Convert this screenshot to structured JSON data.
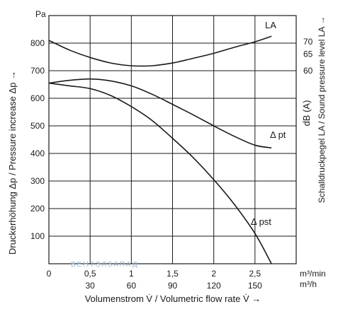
{
  "chart_data": {
    "type": "line",
    "x_unit_primary": "m³/min",
    "x_unit_secondary": "m³/h",
    "y_unit_left": "Pa",
    "y_unit_right": "dB (A)",
    "xlabel": "Volumenstrom V̇ / Volumetric flow rate V̇ →",
    "ylabel_left": "Druckerhöhung Δp / Pressure increase Δp →",
    "ylabel_right": "Schalldruckpegel LA / Sound pressure level LA →",
    "xlim": [
      0,
      3.0
    ],
    "ylim": [
      0,
      900
    ],
    "x_ticks": [
      0,
      0.5,
      1,
      1.5,
      2,
      2.5
    ],
    "x_tick_labels": [
      "0",
      "0,5",
      "1",
      "1,5",
      "2",
      "2,5"
    ],
    "x2_tick_labels": [
      "30",
      "60",
      "90",
      "120",
      "150"
    ],
    "y_ticks": [
      100,
      200,
      300,
      400,
      500,
      600,
      700,
      800
    ],
    "y_tick_labels": [
      "100",
      "200",
      "300",
      "400",
      "500",
      "600",
      "700",
      "800"
    ],
    "y2_tick_labels": [
      "60",
      "65",
      "70"
    ],
    "grid": true,
    "series": [
      {
        "name": "Δ pt",
        "x": [
          0,
          0.25,
          0.5,
          0.75,
          1.0,
          1.25,
          1.5,
          1.75,
          2.0,
          2.25,
          2.5,
          2.7
        ],
        "y": [
          655,
          665,
          670,
          663,
          645,
          615,
          578,
          540,
          500,
          462,
          430,
          420
        ]
      },
      {
        "name": "Δ pst",
        "x": [
          0,
          0.25,
          0.5,
          0.75,
          1.0,
          1.25,
          1.5,
          1.75,
          2.0,
          2.25,
          2.5,
          2.7
        ],
        "y": [
          655,
          645,
          635,
          610,
          570,
          520,
          455,
          385,
          305,
          215,
          110,
          0
        ]
      },
      {
        "name": "LA",
        "x": [
          0,
          0.25,
          0.5,
          0.75,
          1.0,
          1.25,
          1.5,
          1.75,
          2.0,
          2.25,
          2.5,
          2.7
        ],
        "y": [
          810,
          775,
          748,
          728,
          718,
          718,
          728,
          745,
          763,
          785,
          805,
          825
        ]
      }
    ],
    "annotations": {
      "la": "LA",
      "dpt": "Δ pt",
      "dpst": "Δ pst",
      "watermark": "ВЕНТЭЛЗАПАД"
    }
  }
}
